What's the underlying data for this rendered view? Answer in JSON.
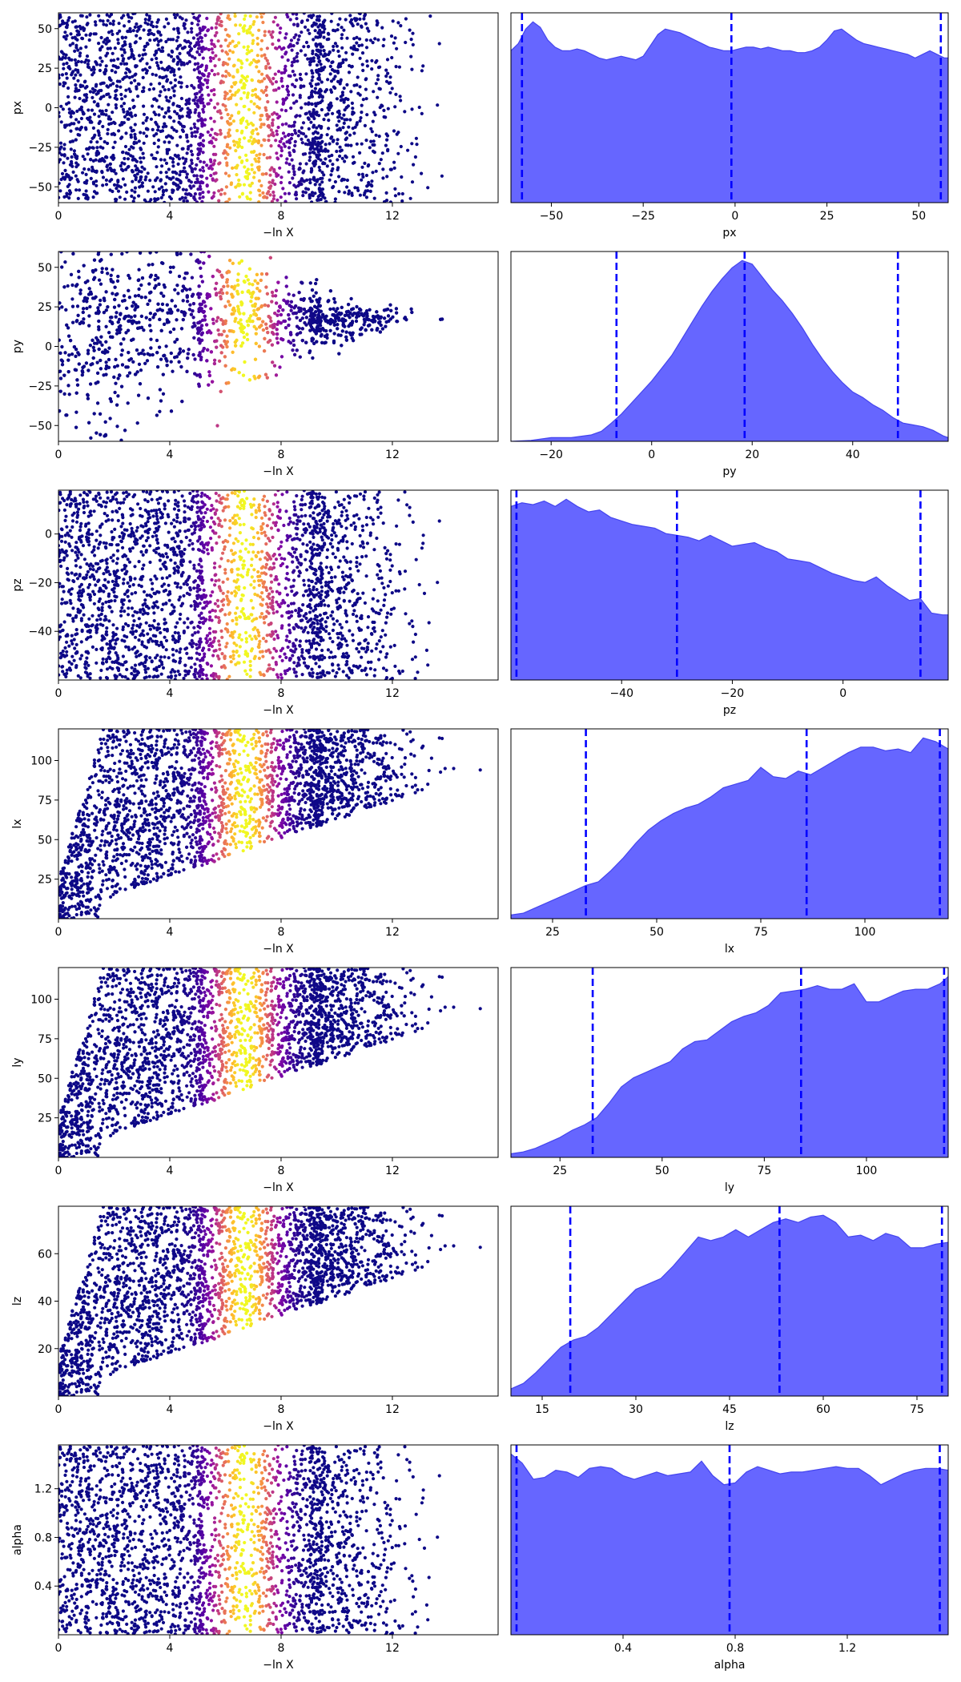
{
  "figure": {
    "background": "#ffffff",
    "scatter_colormap": "plasma",
    "kde_fill_color": "#6666ff",
    "kde_line_color": "#4444ee",
    "quantile_line_color": "#0000ff"
  },
  "chart_data": [
    {
      "type": "scatter",
      "panel": "trace",
      "parameter": "px",
      "xlabel": "−ln X",
      "ylabel": "px",
      "xlim": [
        0,
        15.8
      ],
      "ylim": [
        -60,
        60
      ],
      "xticks": [
        0,
        4,
        8,
        12
      ],
      "xtick_labels": [
        "0",
        "4",
        "8",
        "12"
      ],
      "yticks": [
        50,
        25,
        0,
        -25,
        -50
      ],
      "ytick_labels": [
        "50",
        "25",
        "0",
        "−25",
        "−50"
      ],
      "color_by": "weight",
      "peak_weight_x": 6.7,
      "grid": false
    },
    {
      "type": "area",
      "panel": "marginal",
      "parameter": "px",
      "xlabel": "px",
      "xlim": [
        -61,
        58
      ],
      "xticks": [
        -50,
        -25,
        0,
        25,
        50
      ],
      "xtick_labels": [
        "−50",
        "−25",
        "0",
        "25",
        "50"
      ],
      "quantiles": [
        -58,
        -1,
        56
      ],
      "x": [
        -61,
        -59,
        -57,
        -55,
        -53,
        -51,
        -49,
        -47,
        -45,
        -43,
        -41,
        -39,
        -37,
        -35,
        -33,
        -31,
        -29,
        -27,
        -25,
        -23,
        -21,
        -19,
        -17,
        -15,
        -13,
        -11,
        -9,
        -7,
        -5,
        -3,
        -1,
        1,
        3,
        5,
        7,
        9,
        11,
        13,
        15,
        17,
        19,
        21,
        23,
        25,
        27,
        29,
        31,
        33,
        35,
        37,
        39,
        41,
        43,
        45,
        47,
        49,
        51,
        53,
        55,
        57,
        58
      ],
      "density": [
        0.84,
        0.88,
        0.96,
        1.0,
        0.97,
        0.9,
        0.86,
        0.84,
        0.84,
        0.85,
        0.84,
        0.82,
        0.8,
        0.79,
        0.8,
        0.81,
        0.8,
        0.79,
        0.81,
        0.87,
        0.93,
        0.96,
        0.95,
        0.94,
        0.92,
        0.9,
        0.88,
        0.86,
        0.85,
        0.84,
        0.84,
        0.85,
        0.86,
        0.86,
        0.85,
        0.86,
        0.85,
        0.84,
        0.84,
        0.83,
        0.83,
        0.84,
        0.86,
        0.9,
        0.95,
        0.96,
        0.93,
        0.9,
        0.88,
        0.87,
        0.86,
        0.85,
        0.84,
        0.83,
        0.82,
        0.8,
        0.82,
        0.84,
        0.82,
        0.8,
        0.8
      ],
      "grid": false
    },
    {
      "type": "scatter",
      "panel": "trace",
      "parameter": "py",
      "xlabel": "−ln X",
      "ylabel": "py",
      "xlim": [
        0,
        15.8
      ],
      "ylim": [
        -60,
        60
      ],
      "xticks": [
        0,
        4,
        8,
        12
      ],
      "xtick_labels": [
        "0",
        "4",
        "8",
        "12"
      ],
      "yticks": [
        50,
        25,
        0,
        -25,
        -50
      ],
      "ytick_labels": [
        "50",
        "25",
        "0",
        "−25",
        "−50"
      ],
      "color_by": "weight",
      "peak_weight_x": 6.7,
      "concentrate_center": 18,
      "grid": false
    },
    {
      "type": "area",
      "panel": "marginal",
      "parameter": "py",
      "xlabel": "py",
      "xlim": [
        -28,
        59
      ],
      "xticks": [
        -20,
        0,
        20,
        40
      ],
      "xtick_labels": [
        "−20",
        "0",
        "20",
        "40"
      ],
      "quantiles": [
        -7,
        18.5,
        49
      ],
      "x": [
        -28,
        -24,
        -20,
        -16,
        -12,
        -10,
        -8,
        -6,
        -4,
        -2,
        0,
        2,
        4,
        6,
        8,
        10,
        12,
        14,
        16,
        18,
        20,
        22,
        24,
        26,
        28,
        30,
        32,
        34,
        36,
        38,
        40,
        42,
        44,
        46,
        48,
        50,
        52,
        54,
        56,
        58,
        59
      ],
      "density": [
        0.0,
        0.005,
        0.02,
        0.02,
        0.035,
        0.055,
        0.1,
        0.15,
        0.21,
        0.27,
        0.33,
        0.4,
        0.47,
        0.56,
        0.65,
        0.74,
        0.82,
        0.89,
        0.95,
        0.99,
        0.97,
        0.9,
        0.83,
        0.77,
        0.7,
        0.62,
        0.53,
        0.45,
        0.38,
        0.32,
        0.27,
        0.24,
        0.2,
        0.17,
        0.13,
        0.1,
        0.09,
        0.08,
        0.06,
        0.03,
        0.02
      ],
      "grid": false
    },
    {
      "type": "scatter",
      "panel": "trace",
      "parameter": "pz",
      "xlabel": "−ln X",
      "ylabel": "pz",
      "xlim": [
        0,
        15.8
      ],
      "ylim": [
        -60,
        18
      ],
      "xticks": [
        0,
        4,
        8,
        12
      ],
      "xtick_labels": [
        "0",
        "4",
        "8",
        "12"
      ],
      "yticks": [
        0,
        -20,
        -40
      ],
      "ytick_labels": [
        "0",
        "−20",
        "−40"
      ],
      "color_by": "weight",
      "peak_weight_x": 6.7,
      "grid": false
    },
    {
      "type": "area",
      "panel": "marginal",
      "parameter": "pz",
      "xlabel": "pz",
      "xlim": [
        -60,
        19
      ],
      "xticks": [
        -40,
        -20,
        0
      ],
      "xtick_labels": [
        "−40",
        "−20",
        "0"
      ],
      "quantiles": [
        -59,
        -30,
        14
      ],
      "x": [
        -60,
        -58,
        -56,
        -54,
        -52,
        -50,
        -48,
        -46,
        -44,
        -42,
        -40,
        -38,
        -36,
        -34,
        -32,
        -30,
        -28,
        -26,
        -24,
        -22,
        -20,
        -18,
        -16,
        -14,
        -12,
        -10,
        -8,
        -6,
        -4,
        -2,
        0,
        2,
        4,
        6,
        8,
        10,
        12,
        14,
        16,
        18,
        19
      ],
      "density": [
        0.96,
        0.98,
        0.97,
        0.99,
        0.96,
        1.0,
        0.96,
        0.93,
        0.94,
        0.9,
        0.88,
        0.86,
        0.85,
        0.84,
        0.81,
        0.8,
        0.79,
        0.77,
        0.8,
        0.77,
        0.74,
        0.75,
        0.76,
        0.73,
        0.71,
        0.67,
        0.66,
        0.65,
        0.62,
        0.59,
        0.57,
        0.55,
        0.54,
        0.57,
        0.52,
        0.48,
        0.44,
        0.45,
        0.37,
        0.36,
        0.36
      ],
      "grid": false
    },
    {
      "type": "scatter",
      "panel": "trace",
      "parameter": "lx",
      "xlabel": "−ln X",
      "ylabel": "lx",
      "xlim": [
        0,
        15.8
      ],
      "ylim": [
        0,
        120
      ],
      "xticks": [
        0,
        4,
        8,
        12
      ],
      "xtick_labels": [
        "0",
        "4",
        "8",
        "12"
      ],
      "yticks": [
        100,
        75,
        50,
        25
      ],
      "ytick_labels": [
        "100",
        "75",
        "50",
        "25"
      ],
      "color_by": "weight",
      "peak_weight_x": 6.7,
      "lower_wedge": true,
      "grid": false
    },
    {
      "type": "area",
      "panel": "marginal",
      "parameter": "lx",
      "xlabel": "lx",
      "xlim": [
        15,
        120
      ],
      "xticks": [
        25,
        50,
        75,
        100
      ],
      "xtick_labels": [
        "25",
        "50",
        "75",
        "100"
      ],
      "quantiles": [
        33,
        86,
        118
      ],
      "x": [
        15,
        18,
        21,
        24,
        27,
        30,
        33,
        36,
        39,
        42,
        45,
        48,
        51,
        54,
        57,
        60,
        63,
        66,
        69,
        72,
        75,
        78,
        81,
        84,
        87,
        90,
        93,
        96,
        99,
        102,
        105,
        108,
        111,
        114,
        117,
        120
      ],
      "density": [
        0.02,
        0.03,
        0.06,
        0.09,
        0.12,
        0.15,
        0.18,
        0.2,
        0.26,
        0.33,
        0.41,
        0.48,
        0.53,
        0.57,
        0.6,
        0.62,
        0.66,
        0.71,
        0.73,
        0.75,
        0.82,
        0.77,
        0.76,
        0.8,
        0.78,
        0.82,
        0.86,
        0.9,
        0.93,
        0.93,
        0.91,
        0.92,
        0.9,
        0.98,
        0.96,
        0.92
      ],
      "grid": false
    },
    {
      "type": "scatter",
      "panel": "trace",
      "parameter": "ly",
      "xlabel": "−ln X",
      "ylabel": "ly",
      "xlim": [
        0,
        15.8
      ],
      "ylim": [
        0,
        120
      ],
      "xticks": [
        0,
        4,
        8,
        12
      ],
      "xtick_labels": [
        "0",
        "4",
        "8",
        "12"
      ],
      "yticks": [
        100,
        75,
        50,
        25
      ],
      "ytick_labels": [
        "100",
        "75",
        "50",
        "25"
      ],
      "color_by": "weight",
      "peak_weight_x": 6.7,
      "lower_wedge": true,
      "grid": false
    },
    {
      "type": "area",
      "panel": "marginal",
      "parameter": "ly",
      "xlabel": "ly",
      "xlim": [
        13,
        120
      ],
      "xticks": [
        25,
        50,
        75,
        100
      ],
      "xtick_labels": [
        "25",
        "50",
        "75",
        "100"
      ],
      "quantiles": [
        33,
        84,
        119
      ],
      "x": [
        13,
        16,
        19,
        22,
        25,
        28,
        31,
        34,
        37,
        40,
        43,
        46,
        49,
        52,
        55,
        58,
        61,
        64,
        67,
        70,
        73,
        76,
        79,
        82,
        85,
        88,
        91,
        94,
        97,
        100,
        103,
        106,
        109,
        112,
        115,
        118,
        120
      ],
      "density": [
        0.02,
        0.03,
        0.05,
        0.08,
        0.11,
        0.15,
        0.18,
        0.22,
        0.3,
        0.39,
        0.44,
        0.47,
        0.5,
        0.53,
        0.6,
        0.64,
        0.65,
        0.7,
        0.75,
        0.78,
        0.8,
        0.84,
        0.91,
        0.92,
        0.93,
        0.95,
        0.93,
        0.93,
        0.96,
        0.86,
        0.86,
        0.89,
        0.92,
        0.93,
        0.93,
        0.96,
        1.0
      ],
      "grid": false
    },
    {
      "type": "scatter",
      "panel": "trace",
      "parameter": "lz",
      "xlabel": "−ln X",
      "ylabel": "lz",
      "xlim": [
        0,
        15.8
      ],
      "ylim": [
        0,
        80
      ],
      "xticks": [
        0,
        4,
        8,
        12
      ],
      "xtick_labels": [
        "0",
        "4",
        "8",
        "12"
      ],
      "yticks": [
        60,
        40,
        20
      ],
      "ytick_labels": [
        "60",
        "40",
        "20"
      ],
      "color_by": "weight",
      "peak_weight_x": 6.7,
      "lower_wedge": true,
      "grid": false
    },
    {
      "type": "area",
      "panel": "marginal",
      "parameter": "lz",
      "xlabel": "lz",
      "xlim": [
        10,
        80
      ],
      "xticks": [
        15,
        30,
        45,
        60,
        75
      ],
      "xtick_labels": [
        "15",
        "30",
        "45",
        "60",
        "75"
      ],
      "quantiles": [
        19.5,
        53,
        79
      ],
      "x": [
        10,
        12,
        14,
        16,
        18,
        20,
        22,
        24,
        26,
        28,
        30,
        32,
        34,
        36,
        38,
        40,
        42,
        44,
        46,
        48,
        50,
        52,
        54,
        56,
        58,
        60,
        62,
        64,
        66,
        68,
        70,
        72,
        74,
        76,
        78,
        80
      ],
      "density": [
        0.04,
        0.07,
        0.13,
        0.2,
        0.27,
        0.31,
        0.33,
        0.38,
        0.45,
        0.52,
        0.59,
        0.62,
        0.65,
        0.72,
        0.8,
        0.88,
        0.86,
        0.88,
        0.92,
        0.88,
        0.92,
        0.96,
        0.98,
        0.96,
        0.99,
        1.0,
        0.96,
        0.88,
        0.89,
        0.86,
        0.9,
        0.88,
        0.82,
        0.82,
        0.84,
        0.85
      ],
      "grid": false
    },
    {
      "type": "scatter",
      "panel": "trace",
      "parameter": "alpha",
      "xlabel": "−ln X",
      "ylabel": "alpha",
      "xlim": [
        0,
        15.8
      ],
      "ylim": [
        0,
        1.56
      ],
      "xticks": [
        0,
        4,
        8,
        12
      ],
      "xtick_labels": [
        "0",
        "4",
        "8",
        "12"
      ],
      "yticks": [
        1.2,
        0.8,
        0.4
      ],
      "ytick_labels": [
        "1.2",
        "0.8",
        "0.4"
      ],
      "color_by": "weight",
      "peak_weight_x": 6.7,
      "grid": false
    },
    {
      "type": "area",
      "panel": "marginal",
      "parameter": "alpha",
      "xlabel": "alpha",
      "xlim": [
        0,
        1.56
      ],
      "xticks": [
        0.4,
        0.8,
        1.2
      ],
      "xtick_labels": [
        "0.4",
        "0.8",
        "1.2"
      ],
      "quantiles": [
        0.02,
        0.78,
        1.53
      ],
      "x": [
        0,
        0.04,
        0.08,
        0.12,
        0.16,
        0.2,
        0.24,
        0.28,
        0.32,
        0.36,
        0.4,
        0.44,
        0.48,
        0.52,
        0.56,
        0.6,
        0.64,
        0.68,
        0.72,
        0.76,
        0.8,
        0.84,
        0.88,
        0.92,
        0.96,
        1.0,
        1.04,
        1.08,
        1.12,
        1.16,
        1.2,
        1.24,
        1.28,
        1.32,
        1.36,
        1.4,
        1.44,
        1.48,
        1.52,
        1.56
      ],
      "density": [
        1.0,
        0.95,
        0.86,
        0.87,
        0.91,
        0.9,
        0.87,
        0.92,
        0.93,
        0.92,
        0.88,
        0.86,
        0.88,
        0.9,
        0.88,
        0.89,
        0.9,
        0.96,
        0.88,
        0.83,
        0.84,
        0.9,
        0.93,
        0.91,
        0.89,
        0.9,
        0.9,
        0.91,
        0.92,
        0.93,
        0.92,
        0.92,
        0.88,
        0.83,
        0.86,
        0.89,
        0.91,
        0.92,
        0.92,
        0.91
      ],
      "grid": false
    }
  ]
}
